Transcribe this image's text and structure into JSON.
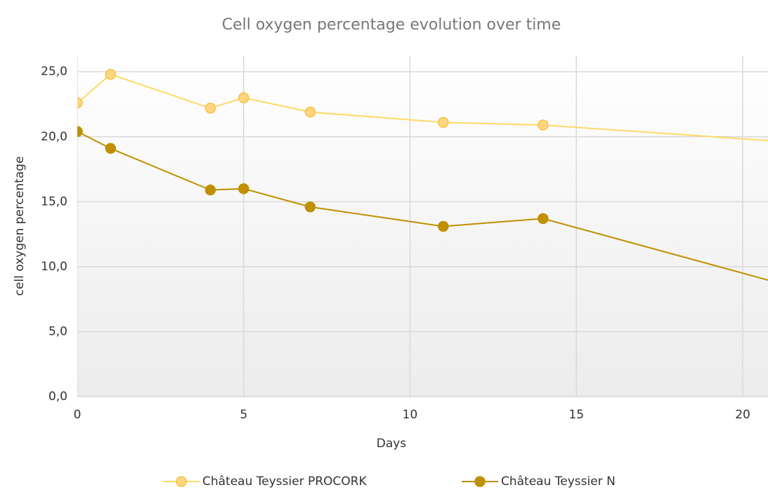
{
  "chart_data": {
    "type": "line",
    "title": "Cell oxygen percentage evolution over time",
    "x_label": "Days",
    "y_label": "cell oxygen percentage",
    "x": [
      0,
      1,
      4,
      5,
      7,
      11,
      14,
      21
    ],
    "series": [
      {
        "name": "Château Teyssier PROCORK",
        "color": "#ffd966",
        "values": [
          22.6,
          24.8,
          22.2,
          23.0,
          21.9,
          21.1,
          20.9,
          19.66
        ]
      },
      {
        "name": "Château Teyssier N",
        "color": "#bf9000",
        "values": [
          20.4,
          19.1,
          15.9,
          16.0,
          14.6,
          13.1,
          13.7,
          8.8
        ]
      }
    ],
    "xlim": [
      0,
      20.76
    ],
    "xticks": [
      0,
      5,
      10,
      15,
      20
    ],
    "ylim": [
      0,
      26.2
    ],
    "yticks": [
      {
        "value": 0,
        "label": "0,0"
      },
      {
        "value": 5,
        "label": "5,0"
      },
      {
        "value": 10,
        "label": "10,0"
      },
      {
        "value": 15,
        "label": "15,0"
      },
      {
        "value": 20,
        "label": "20,0"
      },
      {
        "value": 25,
        "label": "25,0"
      }
    ],
    "grid": true,
    "legend": "bottom"
  }
}
